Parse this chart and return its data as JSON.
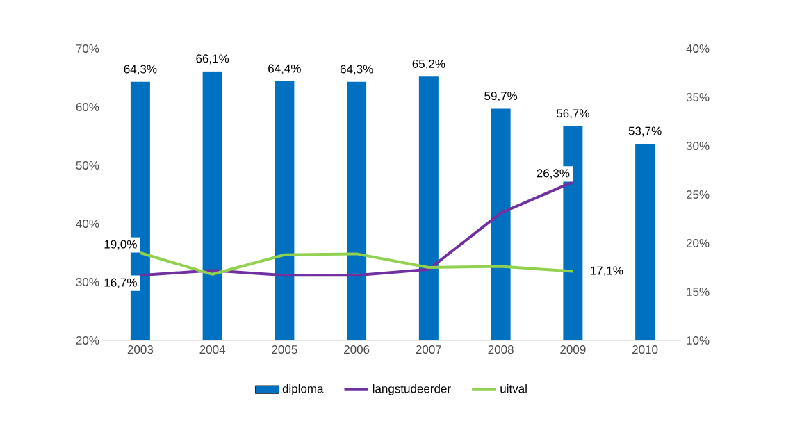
{
  "chart_data": {
    "type": "bar",
    "categories": [
      "2003",
      "2004",
      "2005",
      "2006",
      "2007",
      "2008",
      "2009",
      "2010"
    ],
    "series": [
      {
        "name": "diploma",
        "color": "#0070c0",
        "values": [
          64.3,
          66.1,
          64.4,
          64.3,
          65.2,
          59.7,
          56.7,
          53.7
        ],
        "value_labels": [
          "64,3%",
          "66,1%",
          "64,4%",
          "64,3%",
          "65,2%",
          "59,7%",
          "56,7%",
          "53,7%"
        ]
      },
      {
        "name": "langstudeerder",
        "type": "line",
        "axis": "y2",
        "color": "#7030a0",
        "values": [
          16.7,
          17.2,
          16.7,
          16.7,
          17.3,
          23.1,
          26.3,
          null
        ],
        "value_labels": [
          "16,7%",
          null,
          null,
          null,
          null,
          null,
          "26,3%",
          null
        ]
      },
      {
        "name": "uitval",
        "type": "line",
        "axis": "y2",
        "color": "#92d050",
        "values": [
          19.0,
          16.8,
          18.8,
          18.9,
          17.5,
          17.6,
          17.1,
          null
        ],
        "value_labels": [
          "19,0%",
          null,
          null,
          null,
          null,
          null,
          "17,1%",
          null
        ]
      }
    ],
    "ylim": [
      20,
      70
    ],
    "yticks": [
      {
        "value": 20,
        "label": "20%"
      },
      {
        "value": 30,
        "label": "30%"
      },
      {
        "value": 40,
        "label": "40%"
      },
      {
        "value": 50,
        "label": "50%"
      },
      {
        "value": 60,
        "label": "60%"
      },
      {
        "value": 70,
        "label": "70%"
      }
    ],
    "y2lim": [
      10,
      40
    ],
    "y2ticks": [
      {
        "value": 10,
        "label": "10%"
      },
      {
        "value": 15,
        "label": "15%"
      },
      {
        "value": 20,
        "label": "20%"
      },
      {
        "value": 25,
        "label": "25%"
      },
      {
        "value": 30,
        "label": "30%"
      },
      {
        "value": 35,
        "label": "35%"
      },
      {
        "value": 40,
        "label": "40%"
      }
    ],
    "legend": "bottom",
    "grid": false
  }
}
